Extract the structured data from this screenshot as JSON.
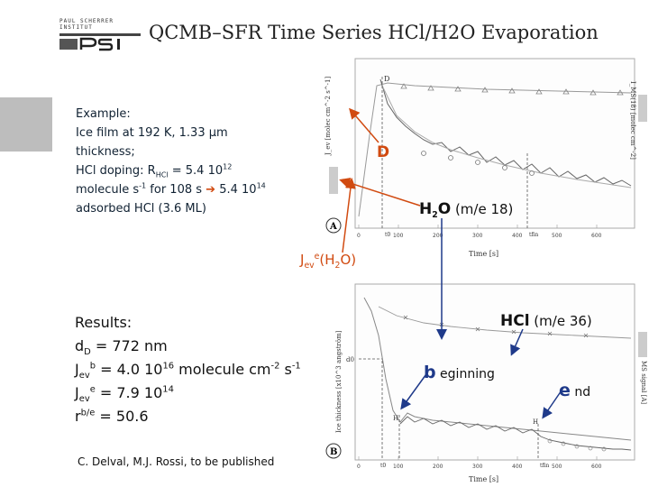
{
  "header": {
    "institute_line": "PAUL SCHERRER INSTITUT",
    "logo_mark": "PSI",
    "title": "QCMB–SFR Time Series HCl/H2O Evaporation"
  },
  "example": {
    "line1": "Example:",
    "line2": "Ice film at 192 K, 1.33 µm",
    "line3": "thickness;",
    "line4_prefix": "HCl doping: R",
    "line4_sub": "HCl",
    "line4_mid": " = 5.4 10",
    "line4_sup": "12",
    "line5_prefix": "molecule s",
    "line5_sup": "-1",
    "line5_mid": " for 108 s ",
    "line5_arrow": "➔",
    "line5_tail": " 5.4 10",
    "line5_sup2": "14",
    "line6": "adsorbed HCl (3.6 ML)"
  },
  "results": {
    "heading": "Results:",
    "dD_label": "d",
    "dD_sub": "D",
    "dD_value": " = 772 nm",
    "jevb_label": "J",
    "jevb_sub": "ev",
    "jevb_sup": "b",
    "jevb_value": " = 4.0 10",
    "jevb_exp": "16",
    "jevb_unit": " molecule cm",
    "jevb_unit_sup1": "-2",
    "jevb_unit_mid": " s",
    "jevb_unit_sup2": "-1",
    "jeve_label": "J",
    "jeve_sub": "ev",
    "jeve_sup": "e",
    "jeve_value": " = 7.9 10",
    "jeve_exp": "14",
    "ratio_label": "r",
    "ratio_sup": "b/e",
    "ratio_value": " = 50.6"
  },
  "citation": "C. Delval, M.J. Rossi, to be published",
  "annotations": {
    "D": "D",
    "jev_prefix": "J",
    "jev_sub": "ev",
    "jev_sup": "e",
    "jev_paren": "(H",
    "jev_sub2": "2",
    "jev_tail": "O)",
    "h2o_main": "H",
    "h2o_sub": "2",
    "h2o_o": "O",
    "h2o_mass": " (m/e 18)",
    "hcl_main": "HCl",
    "hcl_mass": " (m/e 36)",
    "begin_letter": "b",
    "begin_rest": " eginning",
    "end_letter": "e",
    "end_rest": " nd"
  },
  "panel_a": {
    "panel_label": "A",
    "ylabel_left": "J_ev [molec cm^-2 s^-1]",
    "ylabel_right": "I_MS(18) [molec cm^-2]",
    "xlabel": "Time [s]",
    "x_ticks": [
      "0",
      "100",
      "200",
      "300",
      "400",
      "500",
      "600"
    ],
    "markers": [
      "D",
      "t0",
      "tfin"
    ]
  },
  "panel_b": {
    "panel_label": "B",
    "ylabel_left": "Ice thickness [x10^3 angström]",
    "ylabel_right": "MS signal [A]",
    "xlabel": "Time [s]",
    "x_ticks": [
      "0",
      "100",
      "200",
      "300",
      "400",
      "500",
      "600"
    ],
    "markers": [
      "d0",
      "t0",
      "tfin",
      "H"
    ]
  },
  "colors": {
    "accent": "#d14a10",
    "arrow": "#1f3a8a",
    "arrow_red": "#d14a10"
  }
}
